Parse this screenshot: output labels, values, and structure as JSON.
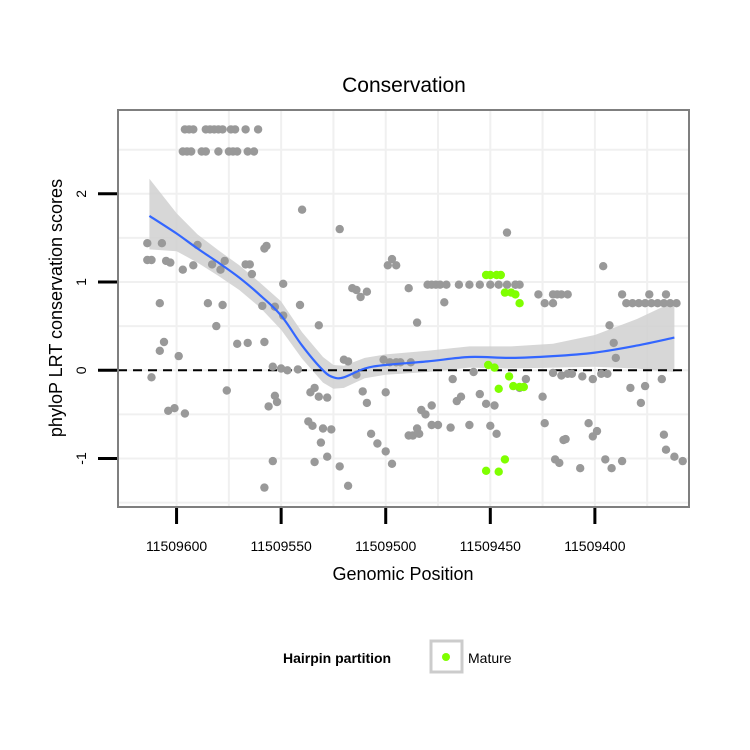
{
  "chart_data": {
    "type": "scatter",
    "title": "Conservation",
    "xlabel": "Genomic Position",
    "ylabel": "phyloP LRT conservation scores",
    "x_reversed": true,
    "xlim": [
      11509628,
      11509355
    ],
    "ylim": [
      -1.55,
      2.95
    ],
    "x_ticks": [
      11509600,
      11509550,
      11509500,
      11509450,
      11509400
    ],
    "x_tick_labels": [
      "11509600",
      "11509550",
      "11509500",
      "11509450",
      "11509400"
    ],
    "y_ticks": [
      -1,
      0,
      1,
      2
    ],
    "y_tick_labels": [
      "-1",
      "0",
      "1",
      "2"
    ],
    "reference_line": {
      "y": 0,
      "style": "dashed",
      "color": "#000000"
    },
    "colors": {
      "other": "#999999",
      "mature": "#7fff00",
      "smooth": "#3366ff",
      "band": "#d0d0d0",
      "panel_border": "#7f7f7f",
      "grid": "#f0f0f0"
    },
    "legend": {
      "title": "Hairpin partition",
      "entries": [
        {
          "label": "Mature",
          "color": "#7fff00"
        }
      ],
      "position": "bottom"
    },
    "series": [
      {
        "name": "Other",
        "color": "#999999",
        "points": [
          [
            11509596,
            2.73
          ],
          [
            11509594,
            2.73
          ],
          [
            11509592,
            2.73
          ],
          [
            11509586,
            2.73
          ],
          [
            11509584,
            2.73
          ],
          [
            11509582,
            2.73
          ],
          [
            11509580,
            2.73
          ],
          [
            11509578,
            2.73
          ],
          [
            11509574,
            2.73
          ],
          [
            11509572,
            2.73
          ],
          [
            11509567,
            2.73
          ],
          [
            11509561,
            2.73
          ],
          [
            11509597,
            2.48
          ],
          [
            11509595,
            2.48
          ],
          [
            11509593,
            2.48
          ],
          [
            11509588,
            2.48
          ],
          [
            11509586,
            2.48
          ],
          [
            11509580,
            2.48
          ],
          [
            11509575,
            2.48
          ],
          [
            11509573,
            2.48
          ],
          [
            11509571,
            2.48
          ],
          [
            11509566,
            2.48
          ],
          [
            11509563,
            2.48
          ],
          [
            11509614,
            1.44
          ],
          [
            11509607,
            1.44
          ],
          [
            11509590,
            1.42
          ],
          [
            11509557,
            1.41
          ],
          [
            11509558,
            1.38
          ],
          [
            11509614,
            1.25
          ],
          [
            11509612,
            1.25
          ],
          [
            11509605,
            1.24
          ],
          [
            11509603,
            1.22
          ],
          [
            11509583,
            1.2
          ],
          [
            11509577,
            1.24
          ],
          [
            11509567,
            1.2
          ],
          [
            11509565,
            1.2
          ],
          [
            11509592,
            1.19
          ],
          [
            11509579,
            1.14
          ],
          [
            11509597,
            1.14
          ],
          [
            11509564,
            1.09
          ],
          [
            11509549,
            0.98
          ],
          [
            11509541,
            0.74
          ],
          [
            11509532,
            0.51
          ],
          [
            11509608,
            0.76
          ],
          [
            11509585,
            0.76
          ],
          [
            11509578,
            0.74
          ],
          [
            11509581,
            0.5
          ],
          [
            11509559,
            0.73
          ],
          [
            11509553,
            0.72
          ],
          [
            11509549,
            0.62
          ],
          [
            11509606,
            0.32
          ],
          [
            11509608,
            0.22
          ],
          [
            11509599,
            0.16
          ],
          [
            11509571,
            0.3
          ],
          [
            11509566,
            0.31
          ],
          [
            11509558,
            0.32
          ],
          [
            11509612,
            -0.08
          ],
          [
            11509604,
            -0.46
          ],
          [
            11509601,
            -0.43
          ],
          [
            11509596,
            -0.49
          ],
          [
            11509576,
            -0.23
          ],
          [
            11509554,
            0.04
          ],
          [
            11509550,
            0.02
          ],
          [
            11509547,
            0.0
          ],
          [
            11509542,
            0.01
          ],
          [
            11509553,
            -0.29
          ],
          [
            11509556,
            -0.41
          ],
          [
            11509552,
            -0.36
          ],
          [
            11509554,
            -1.03
          ],
          [
            11509558,
            -1.33
          ],
          [
            11509536,
            -0.25
          ],
          [
            11509534,
            -0.2
          ],
          [
            11509532,
            -0.3
          ],
          [
            11509528,
            -0.31
          ],
          [
            11509537,
            -0.58
          ],
          [
            11509535,
            -0.63
          ],
          [
            11509530,
            -0.66
          ],
          [
            11509526,
            -0.67
          ],
          [
            11509531,
            -0.82
          ],
          [
            11509534,
            -1.04
          ],
          [
            11509528,
            -0.98
          ],
          [
            11509522,
            -1.09
          ],
          [
            11509518,
            -1.31
          ],
          [
            11509540,
            1.82
          ],
          [
            11509522,
            1.6
          ],
          [
            11509514,
            0.91
          ],
          [
            11509509,
            0.89
          ],
          [
            11509516,
            0.93
          ],
          [
            11509512,
            0.83
          ],
          [
            11509520,
            0.12
          ],
          [
            11509518,
            0.1
          ],
          [
            11509514,
            -0.05
          ],
          [
            11509511,
            -0.24
          ],
          [
            11509509,
            -0.37
          ],
          [
            11509507,
            -0.72
          ],
          [
            11509504,
            -0.83
          ],
          [
            11509500,
            -0.92
          ],
          [
            11509497,
            -1.06
          ],
          [
            11509500,
            -0.25
          ],
          [
            11509501,
            0.12
          ],
          [
            11509498,
            0.09
          ],
          [
            11509495,
            0.09
          ],
          [
            11509493,
            0.09
          ],
          [
            11509488,
            0.09
          ],
          [
            11509499,
            1.19
          ],
          [
            11509497,
            1.26
          ],
          [
            11509495,
            1.19
          ],
          [
            11509489,
            0.93
          ],
          [
            11509485,
            0.54
          ],
          [
            11509483,
            -0.45
          ],
          [
            11509481,
            -0.5
          ],
          [
            11509478,
            -0.62
          ],
          [
            11509485,
            -0.66
          ],
          [
            11509487,
            -0.74
          ],
          [
            11509489,
            -0.74
          ],
          [
            11509484,
            -0.72
          ],
          [
            11509478,
            -0.4
          ],
          [
            11509480,
            0.97
          ],
          [
            11509478,
            0.97
          ],
          [
            11509476,
            0.97
          ],
          [
            11509474,
            0.97
          ],
          [
            11509471,
            0.97
          ],
          [
            11509465,
            0.97
          ],
          [
            11509460,
            0.97
          ],
          [
            11509455,
            0.97
          ],
          [
            11509450,
            0.97
          ],
          [
            11509446,
            0.97
          ],
          [
            11509442,
            0.97
          ],
          [
            11509438,
            0.97
          ],
          [
            11509436,
            0.97
          ],
          [
            11509472,
            0.77
          ],
          [
            11509468,
            -0.1
          ],
          [
            11509466,
            -0.35
          ],
          [
            11509464,
            -0.3
          ],
          [
            11509458,
            -0.02
          ],
          [
            11509455,
            -0.27
          ],
          [
            11509452,
            -0.38
          ],
          [
            11509448,
            -0.4
          ],
          [
            11509450,
            -0.63
          ],
          [
            11509447,
            -0.72
          ],
          [
            11509475,
            -0.62
          ],
          [
            11509469,
            -0.65
          ],
          [
            11509460,
            -0.62
          ],
          [
            11509442,
            1.56
          ],
          [
            11509438,
            0.97
          ],
          [
            11509436,
            -0.2
          ],
          [
            11509433,
            -0.1
          ],
          [
            11509427,
            0.86
          ],
          [
            11509420,
            0.86
          ],
          [
            11509418,
            0.86
          ],
          [
            11509416,
            0.86
          ],
          [
            11509413,
            0.86
          ],
          [
            11509424,
            0.76
          ],
          [
            11509420,
            0.76
          ],
          [
            11509420,
            -0.03
          ],
          [
            11509416,
            -0.06
          ],
          [
            11509413,
            -0.04
          ],
          [
            11509411,
            -0.04
          ],
          [
            11509406,
            -0.07
          ],
          [
            11509401,
            -0.1
          ],
          [
            11509425,
            -0.3
          ],
          [
            11509424,
            -0.6
          ],
          [
            11509419,
            -1.01
          ],
          [
            11509417,
            -1.05
          ],
          [
            11509415,
            -0.79
          ],
          [
            11509414,
            -0.78
          ],
          [
            11509407,
            -1.11
          ],
          [
            11509403,
            -0.6
          ],
          [
            11509401,
            -0.75
          ],
          [
            11509399,
            -0.69
          ],
          [
            11509395,
            -1.01
          ],
          [
            11509392,
            -1.11
          ],
          [
            11509387,
            -1.03
          ],
          [
            11509383,
            -0.2
          ],
          [
            11509397,
            -0.04
          ],
          [
            11509394,
            -0.04
          ],
          [
            11509396,
            1.18
          ],
          [
            11509393,
            0.51
          ],
          [
            11509391,
            0.31
          ],
          [
            11509390,
            0.14
          ],
          [
            11509387,
            0.86
          ],
          [
            11509385,
            0.76
          ],
          [
            11509382,
            0.76
          ],
          [
            11509379,
            0.76
          ],
          [
            11509376,
            0.76
          ],
          [
            11509373,
            0.76
          ],
          [
            11509370,
            0.76
          ],
          [
            11509367,
            0.76
          ],
          [
            11509364,
            0.76
          ],
          [
            11509361,
            0.76
          ],
          [
            11509374,
            0.86
          ],
          [
            11509366,
            0.86
          ],
          [
            11509368,
            -0.1
          ],
          [
            11509376,
            -0.18
          ],
          [
            11509378,
            -0.37
          ],
          [
            11509367,
            -0.73
          ],
          [
            11509366,
            -0.9
          ],
          [
            11509362,
            -0.98
          ],
          [
            11509358,
            -1.03
          ]
        ]
      },
      {
        "name": "Mature",
        "color": "#7fff00",
        "points": [
          [
            11509452,
            1.08
          ],
          [
            11509450,
            1.08
          ],
          [
            11509447,
            1.08
          ],
          [
            11509445,
            1.08
          ],
          [
            11509443,
            0.88
          ],
          [
            11509440,
            0.88
          ],
          [
            11509438,
            0.86
          ],
          [
            11509436,
            0.76
          ],
          [
            11509451,
            0.06
          ],
          [
            11509448,
            0.03
          ],
          [
            11509446,
            -0.21
          ],
          [
            11509441,
            -0.07
          ],
          [
            11509439,
            -0.18
          ],
          [
            11509436,
            -0.19
          ],
          [
            11509434,
            -0.19
          ],
          [
            11509452,
            -1.14
          ],
          [
            11509446,
            -1.15
          ],
          [
            11509443,
            -1.01
          ]
        ]
      }
    ],
    "smooth_curve": [
      [
        11509613,
        1.75
      ],
      [
        11509600,
        1.55
      ],
      [
        11509590,
        1.38
      ],
      [
        11509580,
        1.22
      ],
      [
        11509570,
        1.05
      ],
      [
        11509560,
        0.85
      ],
      [
        11509550,
        0.62
      ],
      [
        11509540,
        0.28
      ],
      [
        11509530,
        0.0
      ],
      [
        11509525,
        -0.08
      ],
      [
        11509520,
        -0.08
      ],
      [
        11509510,
        0.02
      ],
      [
        11509500,
        0.06
      ],
      [
        11509480,
        0.1
      ],
      [
        11509460,
        0.15
      ],
      [
        11509440,
        0.14
      ],
      [
        11509420,
        0.16
      ],
      [
        11509400,
        0.2
      ],
      [
        11509380,
        0.28
      ],
      [
        11509362,
        0.37
      ]
    ],
    "confidence_band": [
      [
        11509613,
        1.37,
        2.17
      ],
      [
        11509600,
        1.35,
        1.78
      ],
      [
        11509590,
        1.22,
        1.54
      ],
      [
        11509580,
        1.07,
        1.36
      ],
      [
        11509570,
        0.91,
        1.19
      ],
      [
        11509560,
        0.71,
        0.99
      ],
      [
        11509550,
        0.46,
        0.78
      ],
      [
        11509540,
        0.13,
        0.43
      ],
      [
        11509530,
        -0.14,
        0.15
      ],
      [
        11509525,
        -0.21,
        0.06
      ],
      [
        11509520,
        -0.2,
        0.05
      ],
      [
        11509510,
        -0.09,
        0.14
      ],
      [
        11509500,
        -0.05,
        0.18
      ],
      [
        11509480,
        -0.02,
        0.22
      ],
      [
        11509460,
        0.03,
        0.27
      ],
      [
        11509440,
        0.02,
        0.27
      ],
      [
        11509420,
        0.03,
        0.3
      ],
      [
        11509400,
        0.04,
        0.4
      ],
      [
        11509380,
        0.02,
        0.58
      ],
      [
        11509362,
        -0.02,
        0.78
      ]
    ]
  }
}
